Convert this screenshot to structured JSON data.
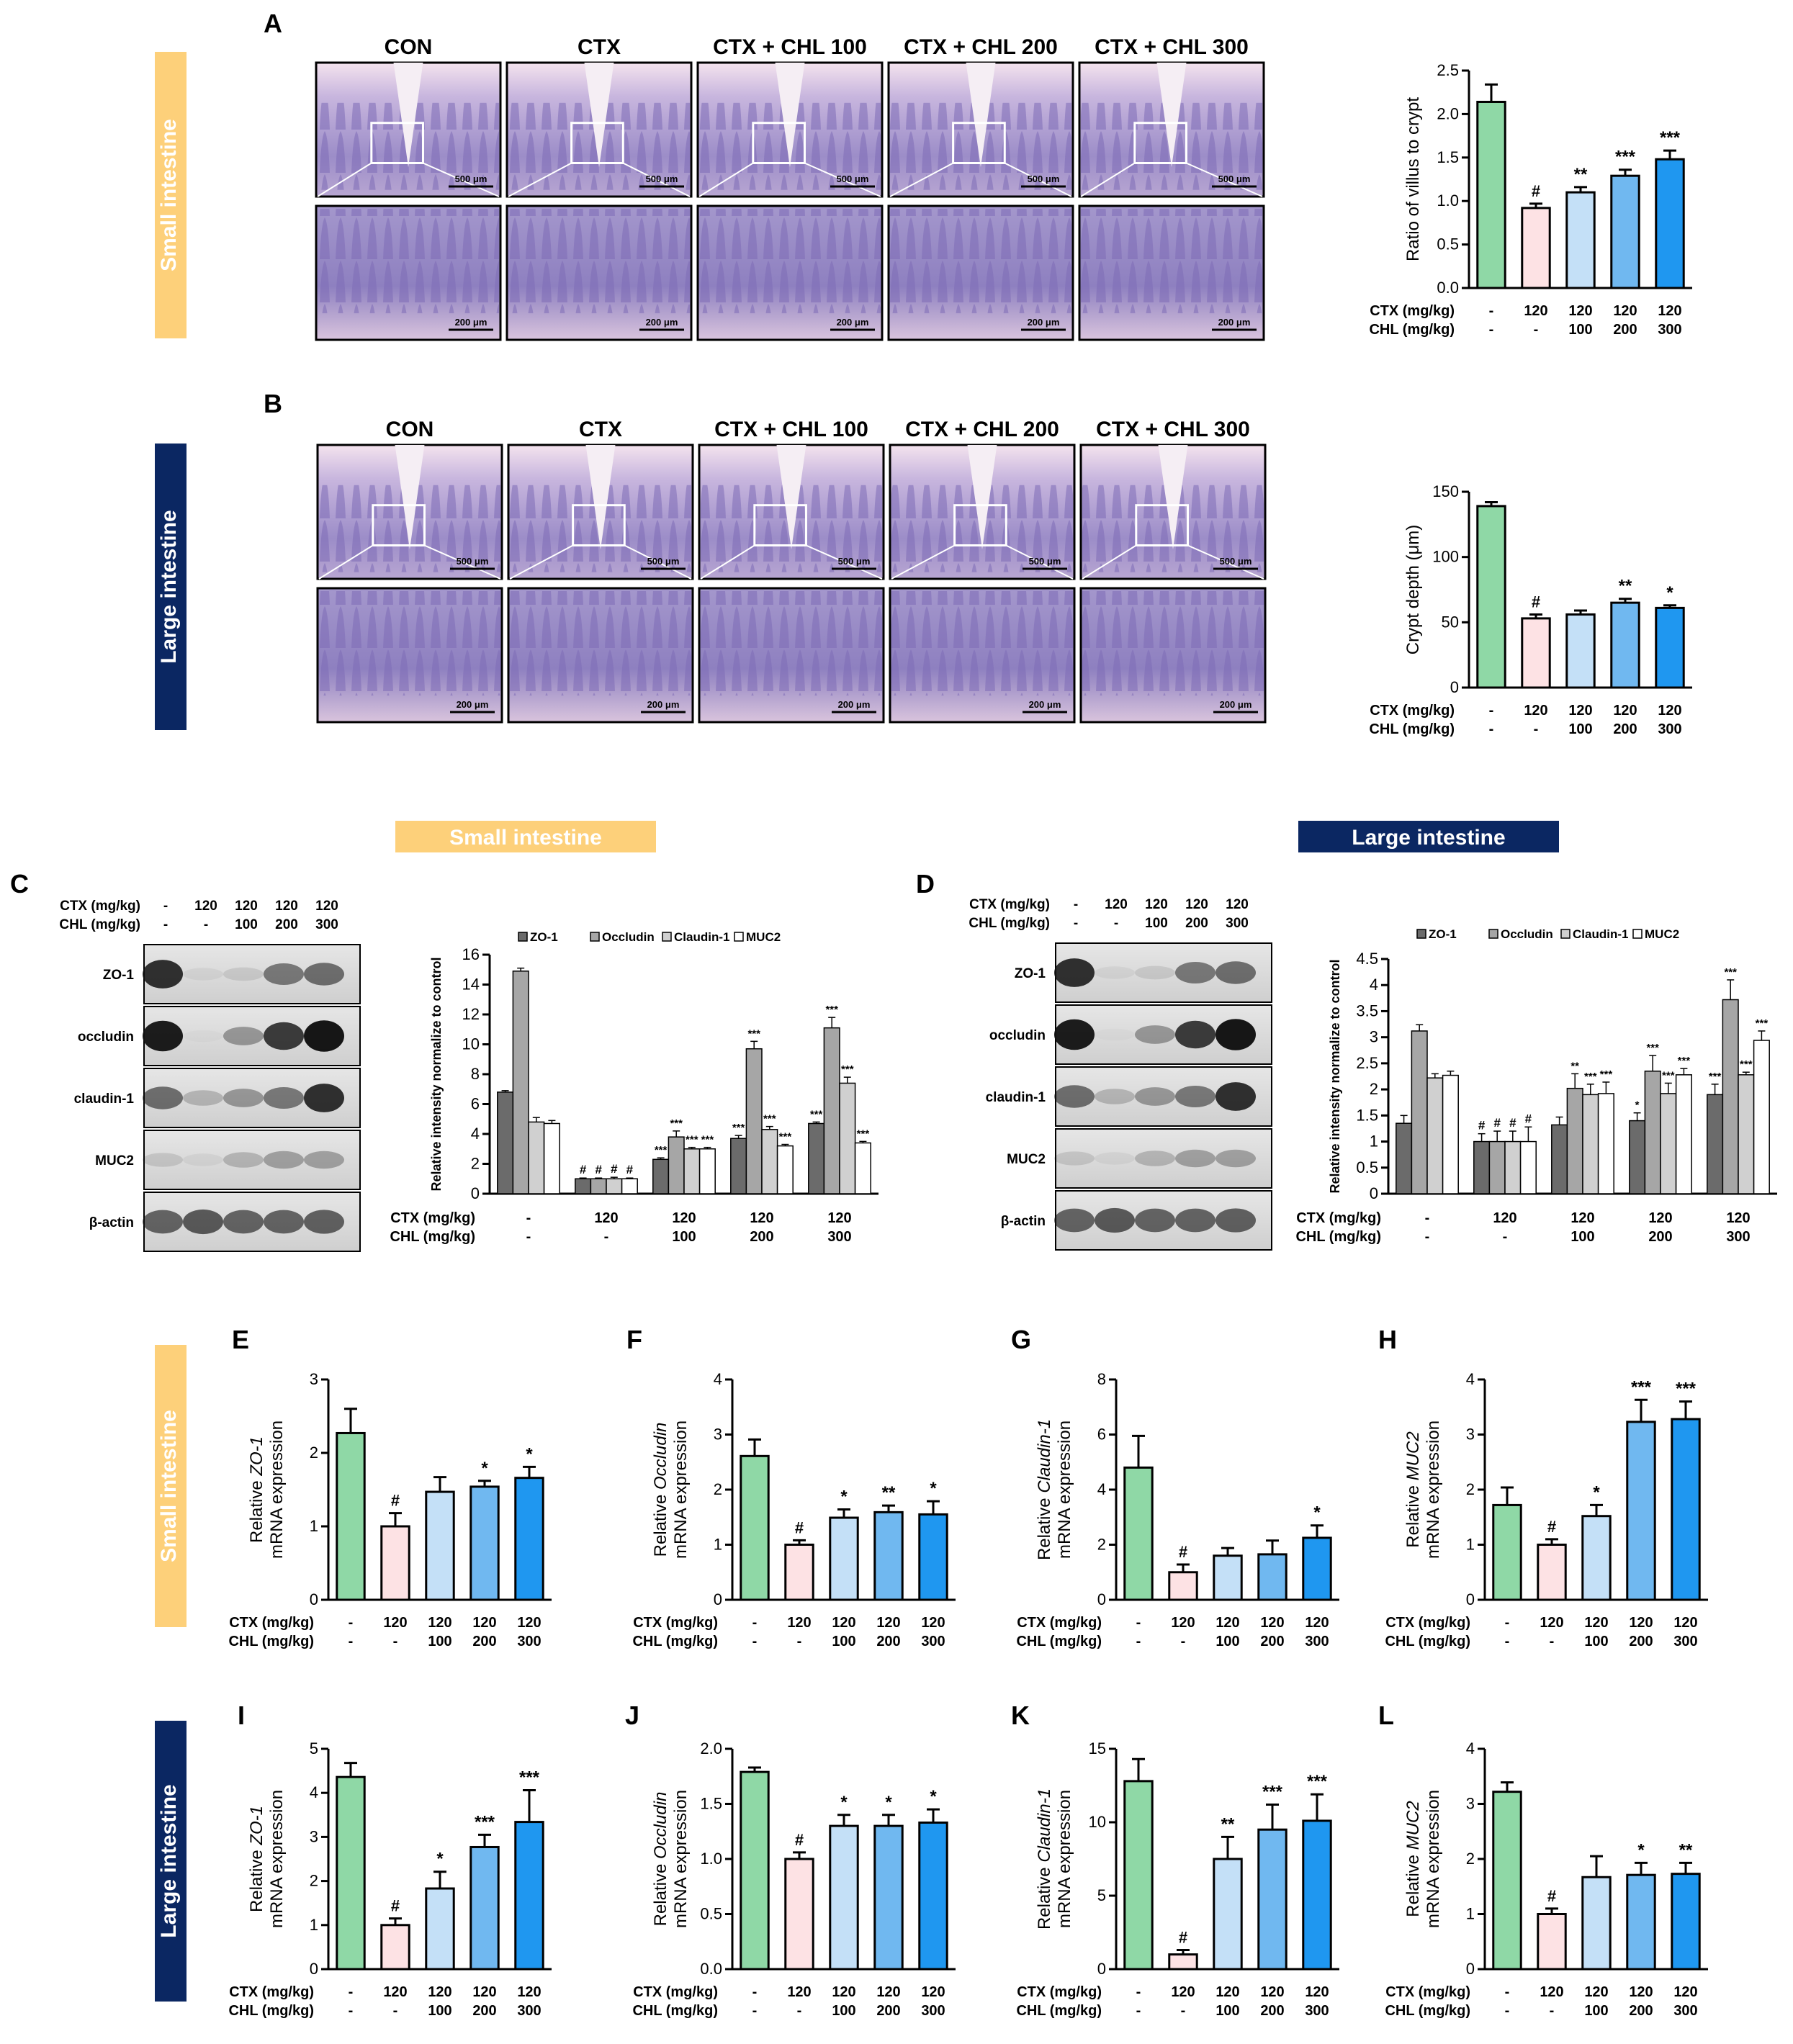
{
  "colors": {
    "group_fills": [
      "#8fd8a6",
      "#fde2e4",
      "#c4e0f7",
      "#70b8f0",
      "#1f97f0"
    ],
    "wb_fills": [
      "#6b6b6b",
      "#a6a6a6",
      "#d0d0d0",
      "#ffffff"
    ],
    "small_banner": "#fdd07a",
    "large_banner": "#0b2762"
  },
  "sections": {
    "small_intestine": "Small intestine",
    "large_intestine": "Large intestine"
  },
  "panel_letters": [
    "A",
    "B",
    "C",
    "D",
    "E",
    "F",
    "G",
    "H",
    "I",
    "J",
    "K",
    "L"
  ],
  "histology": {
    "groups": [
      "CON",
      "CTX",
      "CTX + CHL 100",
      "CTX + CHL 200",
      "CTX + CHL 300"
    ],
    "scale_top": "500 μm",
    "scale_bottom": "200 μm"
  },
  "dose_labels": {
    "ctx_label": "CTX (mg/kg)",
    "chl_label": "CHL (mg/kg)",
    "ctx": [
      "-",
      "120",
      "120",
      "120",
      "120"
    ],
    "chl": [
      "-",
      "-",
      "100",
      "200",
      "300"
    ]
  },
  "western": {
    "small_proteins": [
      "ZO-1",
      "occludin",
      "claudin-1",
      "MUC2",
      "β-actin"
    ],
    "large_proteins": [
      "ZO-1",
      "occludin",
      "claudin-1",
      "MUC2",
      "β-actin"
    ],
    "legend": [
      "ZO-1",
      "Occludin",
      "Claudin-1",
      "MUC2"
    ]
  },
  "chart_data": [
    {
      "id": "A",
      "type": "bar",
      "ylabel": "Ratio of villus to crypt",
      "ylim": [
        0,
        2.5
      ],
      "ticks": [
        "0.0",
        "0.5",
        "1.0",
        "1.5",
        "2.0",
        "2.5"
      ],
      "values": [
        2.14,
        0.92,
        1.1,
        1.29,
        1.48
      ],
      "errors": [
        0.2,
        0.05,
        0.06,
        0.07,
        0.1
      ],
      "sig": [
        "",
        "#",
        "**",
        "***",
        "***"
      ]
    },
    {
      "id": "B",
      "type": "bar",
      "ylabel": "Crypt depth (μm)",
      "ylim": [
        0,
        150
      ],
      "ticks": [
        "0",
        "50",
        "100",
        "150"
      ],
      "values": [
        139,
        53,
        56,
        65,
        61
      ],
      "errors": [
        3,
        3,
        3,
        3,
        2
      ],
      "sig": [
        "",
        "#",
        "",
        "**",
        "*"
      ]
    },
    {
      "id": "C",
      "type": "bar",
      "ylabel": "Relative intensity normalize to control",
      "ylim": [
        0,
        16
      ],
      "ticks": [
        "0",
        "2",
        "4",
        "6",
        "8",
        "10",
        "12",
        "14",
        "16"
      ],
      "series": [
        {
          "name": "ZO-1",
          "values": [
            6.8,
            1.0,
            2.3,
            3.7,
            4.7
          ],
          "errors": [
            0.1,
            0.05,
            0.1,
            0.2,
            0.1
          ],
          "sig": [
            "",
            "#",
            "***",
            "***",
            "***"
          ]
        },
        {
          "name": "Occludin",
          "values": [
            14.9,
            1.0,
            3.8,
            9.7,
            11.1
          ],
          "errors": [
            0.2,
            0.05,
            0.4,
            0.5,
            0.7
          ],
          "sig": [
            "",
            "#",
            "***",
            "***",
            "***"
          ]
        },
        {
          "name": "Claudin-1",
          "values": [
            4.8,
            1.0,
            3.0,
            4.3,
            7.4
          ],
          "errors": [
            0.3,
            0.1,
            0.1,
            0.2,
            0.4
          ],
          "sig": [
            "",
            "#",
            "***",
            "***",
            "***"
          ]
        },
        {
          "name": "MUC2",
          "values": [
            4.7,
            1.0,
            3.0,
            3.2,
            3.4
          ],
          "errors": [
            0.2,
            0.05,
            0.1,
            0.1,
            0.1
          ],
          "sig": [
            "",
            "#",
            "***",
            "***",
            "***"
          ]
        }
      ]
    },
    {
      "id": "D",
      "type": "bar",
      "ylabel": "Relative intensity normalize to control",
      "ylim": [
        0,
        4.5
      ],
      "ticks": [
        "0",
        "0.5",
        "1",
        "1.5",
        "2",
        "2.5",
        "3",
        "3.5",
        "4",
        "4.5"
      ],
      "series": [
        {
          "name": "ZO-1",
          "values": [
            1.35,
            1.0,
            1.32,
            1.4,
            1.9
          ],
          "errors": [
            0.15,
            0.15,
            0.15,
            0.15,
            0.2
          ],
          "sig": [
            "",
            "#",
            "",
            "*",
            "***"
          ]
        },
        {
          "name": "Occludin",
          "values": [
            3.12,
            1.0,
            2.02,
            2.35,
            3.72
          ],
          "errors": [
            0.12,
            0.2,
            0.28,
            0.3,
            0.38
          ],
          "sig": [
            "",
            "#",
            "**",
            "***",
            "***"
          ]
        },
        {
          "name": "Claudin-1",
          "values": [
            2.22,
            1.0,
            1.9,
            1.92,
            2.28
          ],
          "errors": [
            0.08,
            0.2,
            0.2,
            0.2,
            0.05
          ],
          "sig": [
            "",
            "#",
            "***",
            "***",
            "***"
          ]
        },
        {
          "name": "MUC2",
          "values": [
            2.27,
            1.0,
            1.92,
            2.28,
            2.94
          ],
          "errors": [
            0.08,
            0.28,
            0.22,
            0.12,
            0.18
          ],
          "sig": [
            "",
            "#",
            "***",
            "***",
            "***"
          ]
        }
      ]
    },
    {
      "id": "E",
      "type": "bar",
      "gene": "ZO-1",
      "ylim": [
        0,
        3
      ],
      "ticks": [
        "0",
        "1",
        "2",
        "3"
      ],
      "values": [
        2.27,
        1.0,
        1.47,
        1.54,
        1.66
      ],
      "errors": [
        0.33,
        0.18,
        0.2,
        0.08,
        0.15
      ],
      "sig": [
        "",
        "#",
        "",
        "*",
        "*"
      ]
    },
    {
      "id": "F",
      "type": "bar",
      "gene": "Occludin",
      "ylim": [
        0,
        4
      ],
      "ticks": [
        "0",
        "1",
        "2",
        "3",
        "4"
      ],
      "values": [
        2.61,
        1.0,
        1.49,
        1.59,
        1.55
      ],
      "errors": [
        0.3,
        0.08,
        0.15,
        0.12,
        0.24
      ],
      "sig": [
        "",
        "#",
        "*",
        "**",
        "*"
      ]
    },
    {
      "id": "G",
      "type": "bar",
      "gene": "Claudin-1",
      "ylim": [
        0,
        8
      ],
      "ticks": [
        "0",
        "2",
        "4",
        "6",
        "8"
      ],
      "values": [
        4.8,
        1.0,
        1.6,
        1.65,
        2.25
      ],
      "errors": [
        1.15,
        0.28,
        0.28,
        0.5,
        0.45
      ],
      "sig": [
        "",
        "#",
        "",
        "",
        "*"
      ]
    },
    {
      "id": "H",
      "type": "bar",
      "gene": "MUC2",
      "ylim": [
        0,
        4
      ],
      "ticks": [
        "0",
        "1",
        "2",
        "3",
        "4"
      ],
      "values": [
        1.72,
        1.0,
        1.52,
        3.23,
        3.28
      ],
      "errors": [
        0.32,
        0.1,
        0.2,
        0.4,
        0.32
      ],
      "sig": [
        "",
        "#",
        "*",
        "***",
        "***"
      ]
    },
    {
      "id": "I",
      "type": "bar",
      "gene": "ZO-1",
      "ylim": [
        0,
        5
      ],
      "ticks": [
        "0",
        "1",
        "2",
        "3",
        "4",
        "5"
      ],
      "values": [
        4.36,
        1.0,
        1.83,
        2.77,
        3.34
      ],
      "errors": [
        0.32,
        0.15,
        0.38,
        0.28,
        0.72
      ],
      "sig": [
        "",
        "#",
        "*",
        "***",
        "***"
      ]
    },
    {
      "id": "J",
      "type": "bar",
      "gene": "Occludin",
      "ylim": [
        0,
        2.0
      ],
      "ticks": [
        "0.0",
        "0.5",
        "1.0",
        "1.5",
        "2.0"
      ],
      "values": [
        1.79,
        1.0,
        1.3,
        1.3,
        1.33
      ],
      "errors": [
        0.04,
        0.06,
        0.1,
        0.1,
        0.12
      ],
      "sig": [
        "",
        "#",
        "*",
        "*",
        "*"
      ]
    },
    {
      "id": "K",
      "type": "bar",
      "gene": "Claudin-1",
      "ylim": [
        0,
        15
      ],
      "ticks": [
        "0",
        "5",
        "10",
        "15"
      ],
      "values": [
        12.8,
        1.0,
        7.5,
        9.5,
        10.1
      ],
      "errors": [
        1.5,
        0.3,
        1.5,
        1.7,
        1.8
      ],
      "sig": [
        "",
        "#",
        "**",
        "***",
        "***"
      ]
    },
    {
      "id": "L",
      "type": "bar",
      "gene": "MUC2",
      "ylim": [
        0,
        4
      ],
      "ticks": [
        "0",
        "1",
        "2",
        "3",
        "4"
      ],
      "values": [
        3.22,
        1.0,
        1.67,
        1.71,
        1.73
      ],
      "errors": [
        0.17,
        0.1,
        0.38,
        0.22,
        0.2
      ],
      "sig": [
        "",
        "#",
        "",
        "*",
        "**"
      ]
    }
  ],
  "qpcr_ylabel": {
    "prefix": "Relative ",
    "line2": "mRNA expression"
  }
}
